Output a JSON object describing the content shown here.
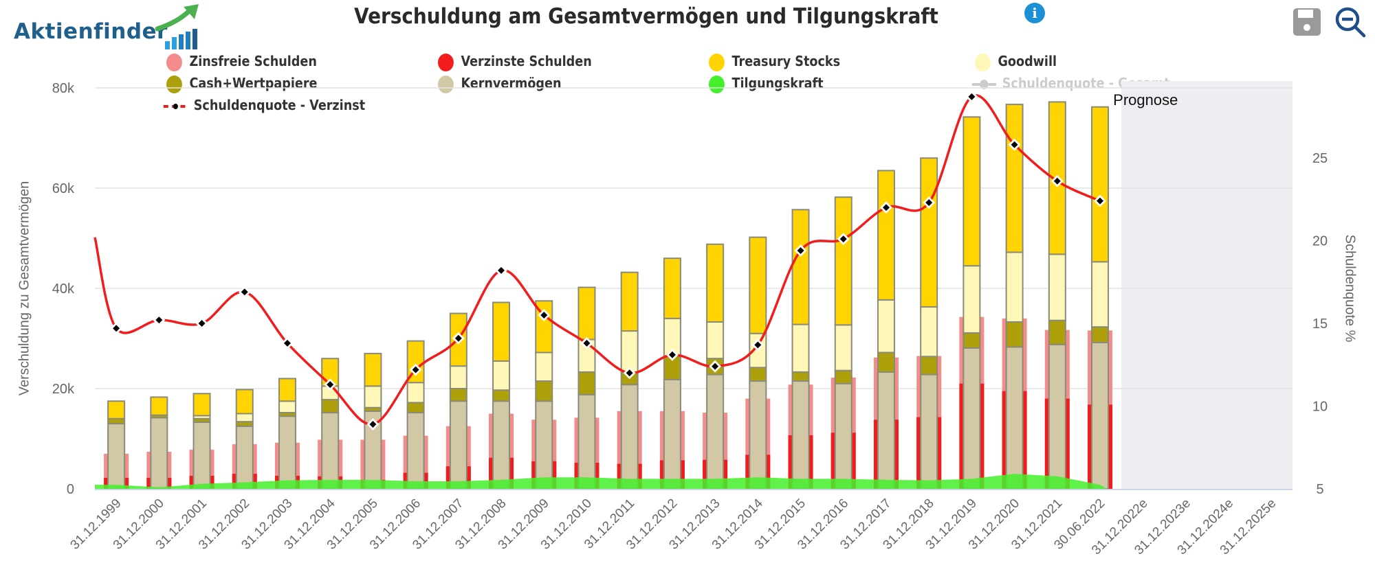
{
  "brand": {
    "name": "Aktienfinder"
  },
  "header": {
    "title": "Verschuldung am Gesamtvermögen und Tilgungskraft",
    "info_icon": "info-icon"
  },
  "toolbar": {
    "save_icon": "save-icon",
    "zoom_out_icon": "zoom-out-icon"
  },
  "colors": {
    "zinsfreie": "#f48c8c",
    "verzinste": "#f21c1c",
    "treasury": "#ffd400",
    "goodwill": "#fff7b8",
    "cash": "#ada00a",
    "kern": "#d3c8a6",
    "tilgung": "#44f02a",
    "quote_verzinst": "#f21c1c",
    "quote_gesamt": "#cccccc",
    "forecast_band": "#eeeef2",
    "bar_border": "#8a8a7a"
  },
  "legend": {
    "items": [
      {
        "key": "zinsfreie",
        "label": "Zinsfreie Schulden",
        "visible": true
      },
      {
        "key": "verzinste",
        "label": "Verzinste Schulden",
        "visible": true
      },
      {
        "key": "treasury",
        "label": "Treasury Stocks",
        "visible": true
      },
      {
        "key": "goodwill",
        "label": "Goodwill",
        "visible": true
      },
      {
        "key": "cash",
        "label": "Cash+Wertpapiere",
        "visible": true
      },
      {
        "key": "kern",
        "label": "Kernvermögen",
        "visible": true
      },
      {
        "key": "tilgung",
        "label": "Tilgungskraft",
        "visible": true
      },
      {
        "key": "quote_gesamt",
        "label": "Schuldenquote - Gesamt",
        "visible": false
      },
      {
        "key": "quote_verzinst",
        "label": "Schuldenquote - Verzinst",
        "visible": true
      }
    ]
  },
  "chart_data": {
    "type": "bar",
    "title": "Verschuldung am Gesamtvermögen und Tilgungskraft",
    "ylabel": "Verschuldung zu Gesamtvermögen",
    "ylabel_right": "Schuldenquote %",
    "ylim": [
      0,
      80000
    ],
    "ylim_right": [
      5,
      29
    ],
    "yticks": [
      "0",
      "20k",
      "40k",
      "60k",
      "80k"
    ],
    "yticks_right": [
      "5",
      "10",
      "15",
      "20",
      "25"
    ],
    "grid": true,
    "legend_position": "top",
    "forecast_label": "Prognose",
    "forecast_start_index": 24,
    "categories": [
      "31.12.1999",
      "31.12.2000",
      "31.12.2001",
      "31.12.2002",
      "31.12.2003",
      "31.12.2004",
      "31.12.2005",
      "31.12.2006",
      "31.12.2007",
      "31.12.2008",
      "31.12.2009",
      "31.12.2010",
      "31.12.2011",
      "31.12.2012",
      "31.12.2013",
      "31.12.2014",
      "31.12.2015",
      "31.12.2016",
      "31.12.2017",
      "31.12.2018",
      "31.12.2019",
      "31.12.2020",
      "31.12.2021",
      "30.06.2022",
      "31.12.2022e",
      "31.12.2023e",
      "31.12.2024e",
      "31.12.2025e"
    ],
    "series": [
      {
        "name": "Zinsfreie Schulden",
        "key": "zinsfreie",
        "kind": "debt_total",
        "values": [
          7000,
          7400,
          7800,
          8900,
          9200,
          9800,
          9800,
          10600,
          12500,
          15000,
          13800,
          14200,
          15500,
          15500,
          15200,
          18000,
          20800,
          22200,
          26200,
          26500,
          34300,
          34000,
          31700,
          31600,
          null,
          null,
          null,
          null
        ]
      },
      {
        "name": "Verzinste Schulden",
        "key": "verzinste",
        "kind": "debt_part",
        "values": [
          2200,
          2200,
          2600,
          3000,
          2600,
          2500,
          1800,
          3200,
          4500,
          6200,
          5500,
          5200,
          5000,
          5700,
          5800,
          6800,
          10700,
          11200,
          13800,
          14300,
          21000,
          19500,
          18000,
          16800,
          null,
          null,
          null,
          null
        ]
      },
      {
        "name": "Kernvermögen",
        "key": "kern",
        "kind": "asset_stack",
        "values": [
          13000,
          14200,
          13300,
          12500,
          14500,
          15200,
          15500,
          15200,
          17500,
          17500,
          17500,
          18800,
          20800,
          21800,
          22800,
          21500,
          21500,
          21000,
          23300,
          22800,
          28100,
          28300,
          28800,
          29200,
          null,
          null,
          null,
          null
        ]
      },
      {
        "name": "Cash+Wertpapiere",
        "key": "cash",
        "kind": "asset_stack",
        "values": [
          1000,
          500,
          700,
          900,
          700,
          2600,
          700,
          2000,
          2500,
          2200,
          4000,
          4500,
          2500,
          4700,
          3200,
          2700,
          1800,
          2600,
          3900,
          3600,
          3000,
          5000,
          4800,
          3100,
          null,
          null,
          null,
          null
        ]
      },
      {
        "name": "Goodwill",
        "key": "goodwill",
        "kind": "asset_stack",
        "values": [
          0,
          0,
          600,
          1600,
          2300,
          2700,
          4300,
          4000,
          4500,
          5800,
          5700,
          6500,
          8200,
          7500,
          7300,
          6800,
          9500,
          9100,
          10500,
          9900,
          13400,
          13900,
          13200,
          13000,
          null,
          null,
          null,
          null
        ]
      },
      {
        "name": "Treasury Stocks",
        "key": "treasury",
        "kind": "asset_stack",
        "values": [
          3500,
          3600,
          4400,
          4800,
          4500,
          5500,
          6500,
          8300,
          10500,
          11700,
          10300,
          10400,
          11700,
          12000,
          15500,
          19200,
          22900,
          25500,
          25800,
          29700,
          29700,
          29500,
          30400,
          30900,
          null,
          null,
          null,
          null
        ]
      },
      {
        "name": "Tilgungskraft",
        "key": "tilgung",
        "kind": "area",
        "values": [
          800,
          300,
          1000,
          1300,
          1700,
          1800,
          1800,
          1500,
          1500,
          1800,
          2300,
          2300,
          2000,
          2000,
          2000,
          2300,
          2000,
          2000,
          1800,
          1700,
          2000,
          3000,
          2500,
          800,
          null,
          null,
          null,
          null
        ]
      },
      {
        "name": "Schuldenquote - Verzinst",
        "key": "quote_verzinst",
        "kind": "line_right",
        "values": [
          14.7,
          15.2,
          15.0,
          16.9,
          13.8,
          11.3,
          8.9,
          12.2,
          14.1,
          18.2,
          15.5,
          13.8,
          12.0,
          13.1,
          12.4,
          13.7,
          19.4,
          20.1,
          22.0,
          22.3,
          28.7,
          25.8,
          23.6,
          22.4,
          null,
          null,
          null,
          null
        ]
      }
    ]
  }
}
